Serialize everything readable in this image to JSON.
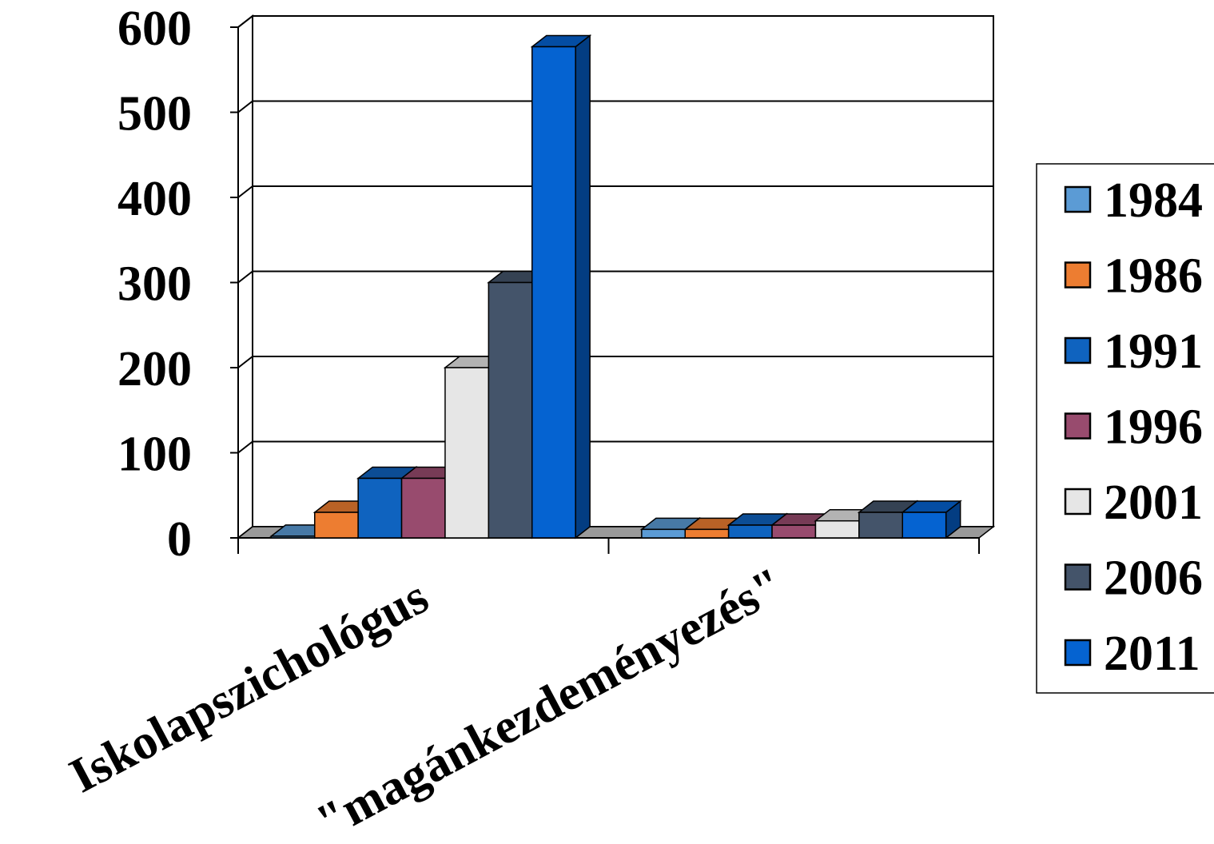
{
  "chart_data": {
    "type": "bar",
    "three_d": true,
    "title": "",
    "xlabel": "",
    "ylabel": "",
    "ylim": [
      0,
      600
    ],
    "yticks": [
      0,
      100,
      200,
      300,
      400,
      500,
      600
    ],
    "ytick_labels": [
      "0",
      "100",
      "200",
      "300",
      "400",
      "500",
      "600"
    ],
    "grid": true,
    "legend_position": "right",
    "categories": [
      "Iskolapszichológus",
      "\"magánkezdeményezés\""
    ],
    "series": [
      {
        "name": "1984",
        "color": "#5B9BD5",
        "values": [
          2,
          10
        ]
      },
      {
        "name": "1986",
        "color": "#ED7D31",
        "values": [
          30,
          10
        ]
      },
      {
        "name": "1991",
        "color": "#0F63BF",
        "values": [
          70,
          15
        ]
      },
      {
        "name": "1996",
        "color": "#984B6E",
        "values": [
          70,
          15
        ]
      },
      {
        "name": "2001",
        "color": "#E6E6E6",
        "values": [
          200,
          20
        ]
      },
      {
        "name": "2006",
        "color": "#44546A",
        "values": [
          300,
          30
        ]
      },
      {
        "name": "2011",
        "color": "#0563D1",
        "values": [
          577,
          30
        ]
      }
    ]
  }
}
